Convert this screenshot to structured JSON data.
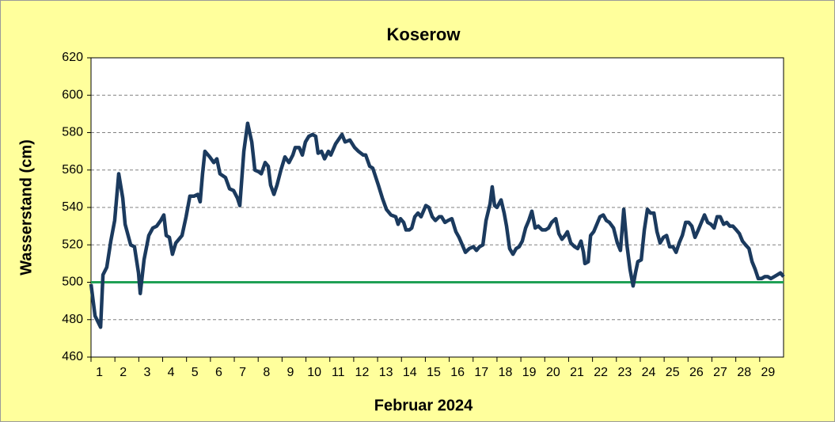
{
  "chart_data": {
    "type": "line",
    "title": "Koserow",
    "x_label": "Februar 2024",
    "y_label": "Wasserstand (cm)",
    "xlim": [
      1,
      30
    ],
    "xticks": [
      1,
      2,
      3,
      4,
      5,
      6,
      7,
      8,
      9,
      10,
      11,
      12,
      13,
      14,
      15,
      16,
      17,
      18,
      19,
      20,
      21,
      22,
      23,
      24,
      25,
      26,
      27,
      28,
      29
    ],
    "ylim": [
      460,
      620
    ],
    "yticks": [
      460,
      480,
      500,
      520,
      540,
      560,
      580,
      600,
      620
    ],
    "grid": true,
    "reference_line": {
      "value": 500,
      "color": "#1fa055"
    },
    "series": [
      {
        "color": "#1b3a5e",
        "x": [
          1.0,
          1.17,
          1.4,
          1.5,
          1.66,
          1.83,
          1.99,
          2.16,
          2.33,
          2.43,
          2.66,
          2.82,
          2.99,
          3.06,
          3.22,
          3.42,
          3.59,
          3.75,
          3.92,
          4.05,
          4.15,
          4.28,
          4.41,
          4.55,
          4.81,
          4.98,
          5.14,
          5.31,
          5.47,
          5.57,
          5.67,
          5.77,
          5.97,
          6.14,
          6.27,
          6.4,
          6.63,
          6.8,
          6.97,
          7.13,
          7.23,
          7.4,
          7.56,
          7.73,
          7.86,
          8.03,
          8.13,
          8.29,
          8.42,
          8.52,
          8.66,
          8.79,
          8.95,
          9.12,
          9.29,
          9.45,
          9.55,
          9.72,
          9.85,
          9.98,
          10.12,
          10.28,
          10.41,
          10.51,
          10.65,
          10.78,
          10.94,
          11.04,
          11.24,
          11.51,
          11.64,
          11.84,
          12.04,
          12.2,
          12.4,
          12.5,
          12.67,
          12.8,
          13.03,
          13.2,
          13.37,
          13.56,
          13.76,
          13.86,
          13.96,
          14.09,
          14.19,
          14.33,
          14.43,
          14.56,
          14.69,
          14.82,
          15.02,
          15.15,
          15.29,
          15.42,
          15.58,
          15.68,
          15.82,
          15.95,
          16.11,
          16.28,
          16.41,
          16.58,
          16.68,
          16.84,
          17.01,
          17.14,
          17.27,
          17.41,
          17.54,
          17.71,
          17.8,
          17.9,
          18.0,
          18.17,
          18.3,
          18.4,
          18.53,
          18.67,
          18.8,
          18.93,
          19.06,
          19.2,
          19.33,
          19.46,
          19.6,
          19.73,
          19.89,
          20.03,
          20.16,
          20.29,
          20.46,
          20.59,
          20.72,
          20.85,
          20.95,
          21.09,
          21.25,
          21.38,
          21.52,
          21.62,
          21.68,
          21.82,
          21.92,
          22.05,
          22.18,
          22.31,
          22.45,
          22.58,
          22.71,
          22.88,
          23.04,
          23.17,
          23.31,
          23.44,
          23.57,
          23.7,
          23.8,
          23.9,
          24.04,
          24.17,
          24.3,
          24.43,
          24.57,
          24.7,
          24.83,
          24.97,
          25.1,
          25.23,
          25.37,
          25.5,
          25.63,
          25.76,
          25.9,
          26.03,
          26.16,
          26.29,
          26.43,
          26.56,
          26.69,
          26.82,
          26.96,
          27.09,
          27.22,
          27.35,
          27.49,
          27.62,
          27.75,
          27.88,
          28.02,
          28.15,
          28.28,
          28.41,
          28.55,
          28.68,
          28.81,
          28.94,
          29.08,
          29.21,
          29.34,
          29.47,
          29.61,
          29.74,
          29.87,
          30.0
        ],
        "values": [
          499,
          482,
          476,
          504,
          508,
          522,
          533,
          558,
          545,
          531,
          520,
          519,
          505,
          494,
          512,
          525,
          529,
          530,
          533,
          536,
          525,
          524,
          515,
          521,
          525,
          535,
          546,
          546,
          547,
          543,
          558,
          570,
          567,
          564,
          566,
          558,
          556,
          550,
          549,
          545,
          541,
          570,
          585,
          575,
          560,
          559,
          558,
          564,
          562,
          552,
          547,
          552,
          560,
          567,
          564,
          568,
          572,
          572,
          568,
          575,
          578,
          579,
          578,
          569,
          570,
          566,
          570,
          568,
          574,
          579,
          575,
          576,
          572,
          570,
          568,
          568,
          562,
          561,
          552,
          545,
          539,
          536,
          535,
          531,
          534,
          532,
          528,
          528,
          529,
          535,
          537,
          535,
          541,
          540,
          535,
          533,
          535,
          535,
          532,
          533,
          534,
          527,
          524,
          519,
          516,
          518,
          519,
          517,
          519,
          520,
          533,
          542,
          551,
          541,
          540,
          544,
          537,
          530,
          518,
          515,
          518,
          519,
          522,
          529,
          533,
          538,
          529,
          530,
          528,
          528,
          529,
          532,
          534,
          526,
          523,
          525,
          527,
          521,
          519,
          518,
          522,
          516,
          510,
          511,
          525,
          527,
          531,
          535,
          536,
          533,
          532,
          529,
          521,
          517,
          539,
          520,
          507,
          498,
          505,
          511,
          512,
          528,
          539,
          537,
          537,
          527,
          521,
          524,
          525,
          519,
          519,
          516,
          521,
          525,
          532,
          532,
          530,
          524,
          528,
          532,
          536,
          532,
          531,
          529,
          535,
          535,
          531,
          532,
          530,
          530,
          528,
          526,
          522,
          520,
          518,
          511,
          507,
          502,
          502,
          503,
          503,
          502,
          503,
          504,
          505,
          503
        ]
      }
    ]
  }
}
